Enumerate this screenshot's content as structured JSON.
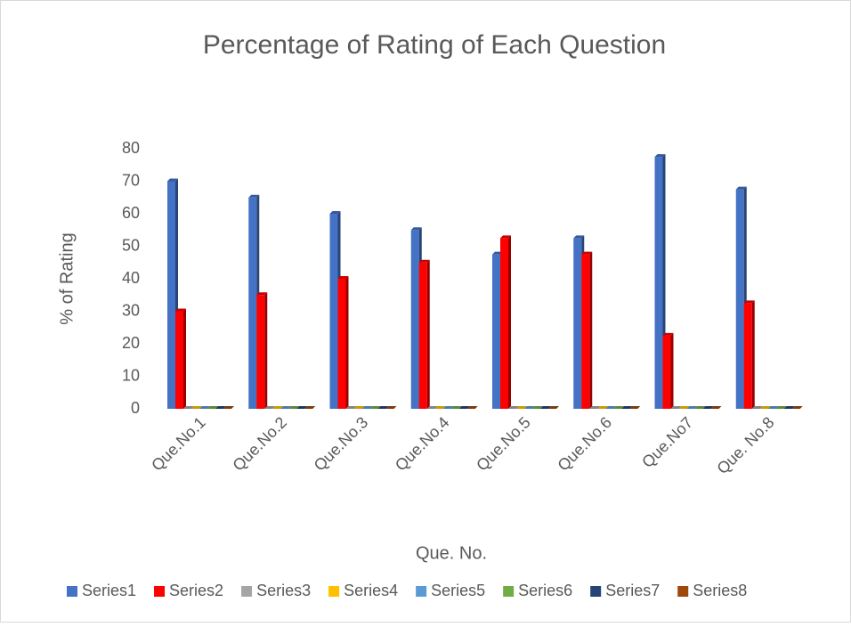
{
  "chart_data": {
    "type": "bar3d",
    "title": "Percentage of Rating of Each Question",
    "x_label": "Que. No.",
    "y_label": "% of Rating",
    "categories": [
      "Que.No.1",
      "Que.No.2",
      "Que.No.3",
      "Que.No.4",
      "Que.No.5",
      "Que.No.6",
      "Que.No7",
      "Que. No.8"
    ],
    "series": [
      {
        "name": "Series1",
        "color": "#4472c4",
        "values": [
          70,
          65,
          60,
          55,
          47.5,
          52.5,
          77.5,
          67.5
        ]
      },
      {
        "name": "Series2",
        "color": "#ff0000",
        "values": [
          30,
          35,
          40,
          45,
          52.5,
          47.5,
          22.5,
          32.5
        ]
      },
      {
        "name": "Series3",
        "color": "#a5a5a5",
        "values": [
          0,
          0,
          0,
          0,
          0,
          0,
          0,
          0
        ]
      },
      {
        "name": "Series4",
        "color": "#ffc000",
        "values": [
          0,
          0,
          0,
          0,
          0,
          0,
          0,
          0
        ]
      },
      {
        "name": "Series5",
        "color": "#5b9bd5",
        "values": [
          0,
          0,
          0,
          0,
          0,
          0,
          0,
          0
        ]
      },
      {
        "name": "Series6",
        "color": "#70ad47",
        "values": [
          0,
          0,
          0,
          0,
          0,
          0,
          0,
          0
        ]
      },
      {
        "name": "Series7",
        "color": "#264478",
        "values": [
          0,
          0,
          0,
          0,
          0,
          0,
          0,
          0
        ]
      },
      {
        "name": "Series8",
        "color": "#9e480e",
        "values": [
          0,
          0,
          0,
          0,
          0,
          0,
          0,
          0
        ]
      }
    ],
    "ylim": [
      0,
      80
    ],
    "yticks": [
      0,
      10,
      20,
      30,
      40,
      50,
      60,
      70,
      80
    ],
    "legend": "bottom"
  }
}
